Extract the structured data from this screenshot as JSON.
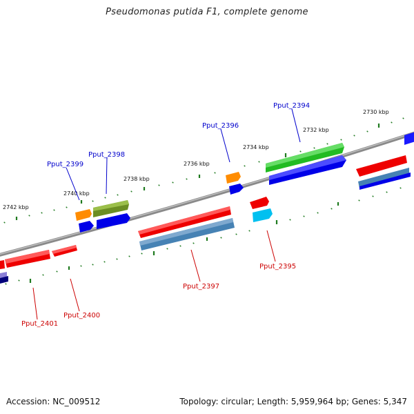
{
  "title": "Pseudomonas putida F1, complete genome",
  "footer": {
    "accession": "Accession: NC_009512",
    "summary": "Topology: circular; Length: 5,959,964 bp; Genes: 5,347"
  },
  "colors": {
    "backbone": "#8a8a8a",
    "tick": "#1f7a1f",
    "upper_label": "#0000cc",
    "lower_label": "#cc0000"
  },
  "scale_labels": [
    "2730 kbp",
    "2732 kbp",
    "2734 kbp",
    "2736 kbp",
    "2738 kbp",
    "2740 kbp",
    "2742 kbp"
  ],
  "gene_labels": {
    "upper": [
      "Pput_2394",
      "Pput_2396",
      "Pput_2398",
      "Pput_2399"
    ],
    "lower": [
      "Pput_2395",
      "Pput_2397",
      "Pput_2400",
      "Pput_2401"
    ]
  },
  "feature_colors": [
    "red",
    "blue",
    "green",
    "olive",
    "orange",
    "steelblue",
    "cyan",
    "navy",
    "slateblue"
  ]
}
